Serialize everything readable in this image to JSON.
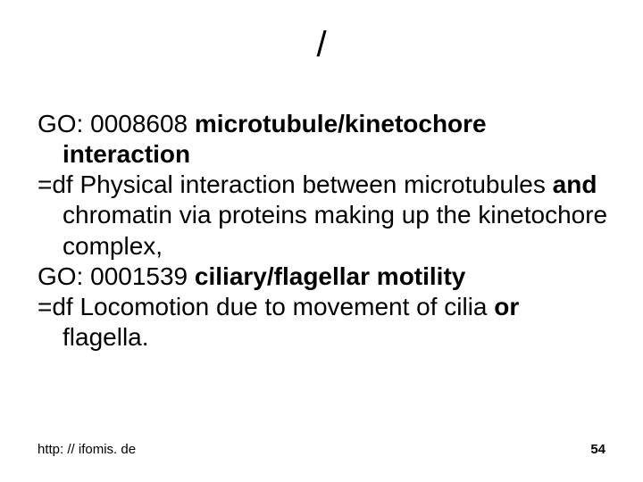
{
  "title": "/",
  "entries": [
    {
      "id_prefix": "GO: 0008608 ",
      "term": "microtubule/kinetochore interaction",
      "def_prefix": "=df Physical interaction between microtubules ",
      "conj": "and",
      "def_suffix": " chromatin via proteins making up the kinetochore complex,"
    },
    {
      "id_prefix": "GO: 0001539 ",
      "term": "ciliary/flagellar motility",
      "def_prefix": "=df Locomotion due to movement of cilia ",
      "conj": "or",
      "def_suffix": " flagella."
    }
  ],
  "footer": {
    "url": "http: // ifomis. de",
    "page": "54"
  },
  "style": {
    "background_color": "#ffffff",
    "text_color": "#000000",
    "title_fontsize": 40,
    "body_fontsize": 28,
    "footer_fontsize": 15,
    "font_family": "Arial"
  }
}
